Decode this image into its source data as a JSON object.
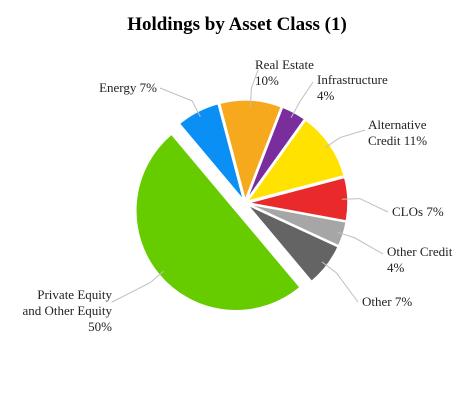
{
  "chart_data": {
    "type": "pie",
    "title": "Holdings by Asset Class (1)",
    "categories": [
      "Energy",
      "Real Estate",
      "Infrastructure",
      "Alternative Credit",
      "CLOs",
      "Other Credit",
      "Other",
      "Private Equity and Other Equity"
    ],
    "values": [
      7,
      10,
      4,
      11,
      7,
      4,
      7,
      50
    ],
    "value_labels": [
      "7%",
      "10%",
      "4%",
      "11%",
      "7%",
      "4%",
      "7%",
      "50%"
    ],
    "colors": [
      "#0a8ff5",
      "#f7a91d",
      "#7a2e9e",
      "#ffe200",
      "#ea2a2a",
      "#a6a6a6",
      "#646464",
      "#66cc00"
    ]
  }
}
